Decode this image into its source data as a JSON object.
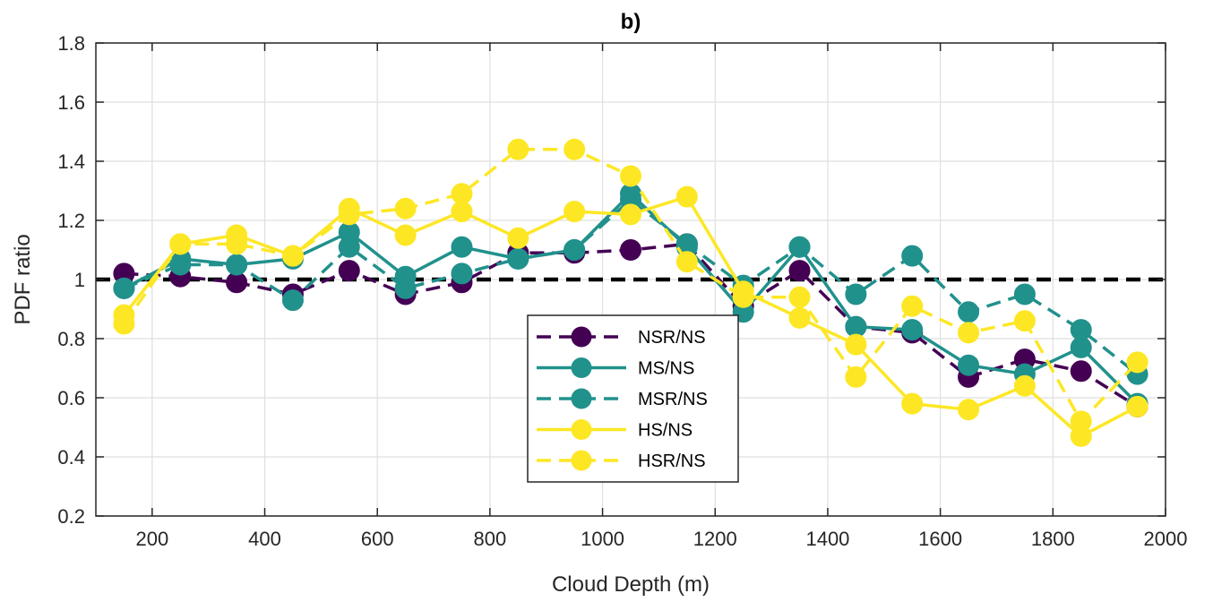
{
  "chart_data": {
    "type": "line",
    "title": "b)",
    "xlabel": "Cloud Depth (m)",
    "ylabel": "PDF ratio",
    "xlim": [
      100,
      2000
    ],
    "ylim": [
      0.2,
      1.8
    ],
    "xticks": [
      200,
      400,
      600,
      800,
      1000,
      1200,
      1400,
      1600,
      1800,
      2000
    ],
    "yticks": [
      0.2,
      0.4,
      0.6,
      0.8,
      1,
      1.2,
      1.4,
      1.6,
      1.8
    ],
    "xtick_labels": [
      "200",
      "400",
      "600",
      "800",
      "1000",
      "1200",
      "1400",
      "1600",
      "1800",
      "2000"
    ],
    "ytick_labels": [
      "0.2",
      "0.4",
      "0.6",
      "0.8",
      "1",
      "1.2",
      "1.4",
      "1.6",
      "1.8"
    ],
    "grid": true,
    "legend_position": "center-bottom",
    "reference_line": {
      "y": 1,
      "style": "dashed",
      "color": "#000000"
    },
    "x": [
      150,
      250,
      350,
      450,
      550,
      650,
      750,
      850,
      950,
      1050,
      1150,
      1250,
      1350,
      1450,
      1550,
      1650,
      1750,
      1850,
      1950
    ],
    "series": [
      {
        "name": "NSR/NS",
        "color": "#440154",
        "line": "dashed",
        "values": [
          1.02,
          1.01,
          0.99,
          0.95,
          1.03,
          0.95,
          0.99,
          1.09,
          1.09,
          1.1,
          1.12,
          0.91,
          1.03,
          0.84,
          0.82,
          0.67,
          0.73,
          0.69,
          0.57
        ]
      },
      {
        "name": "MS/NS",
        "color": "#21918c",
        "line": "solid",
        "values": [
          0.97,
          1.07,
          1.05,
          1.07,
          1.16,
          1.01,
          1.11,
          1.07,
          1.1,
          1.29,
          1.11,
          0.89,
          1.11,
          0.84,
          0.83,
          0.71,
          0.68,
          0.77,
          0.58
        ]
      },
      {
        "name": "MSR/NS",
        "color": "#21918c",
        "line": "dashed",
        "values": [
          0.97,
          1.05,
          1.05,
          0.93,
          1.11,
          0.97,
          1.02,
          1.07,
          1.1,
          1.27,
          1.12,
          0.98,
          1.11,
          0.95,
          1.08,
          0.89,
          0.95,
          0.83,
          0.68
        ]
      },
      {
        "name": "HS/NS",
        "color": "#fde725",
        "line": "solid",
        "values": [
          0.88,
          1.12,
          1.15,
          1.08,
          1.24,
          1.15,
          1.23,
          1.14,
          1.23,
          1.22,
          1.28,
          0.96,
          0.87,
          0.78,
          0.58,
          0.56,
          0.64,
          0.47,
          0.57
        ]
      },
      {
        "name": "HSR/NS",
        "color": "#fde725",
        "line": "dashed",
        "values": [
          0.85,
          1.12,
          1.12,
          1.08,
          1.22,
          1.24,
          1.29,
          1.44,
          1.44,
          1.35,
          1.06,
          0.94,
          0.94,
          0.67,
          0.91,
          0.82,
          0.86,
          0.52,
          0.72
        ]
      }
    ]
  }
}
